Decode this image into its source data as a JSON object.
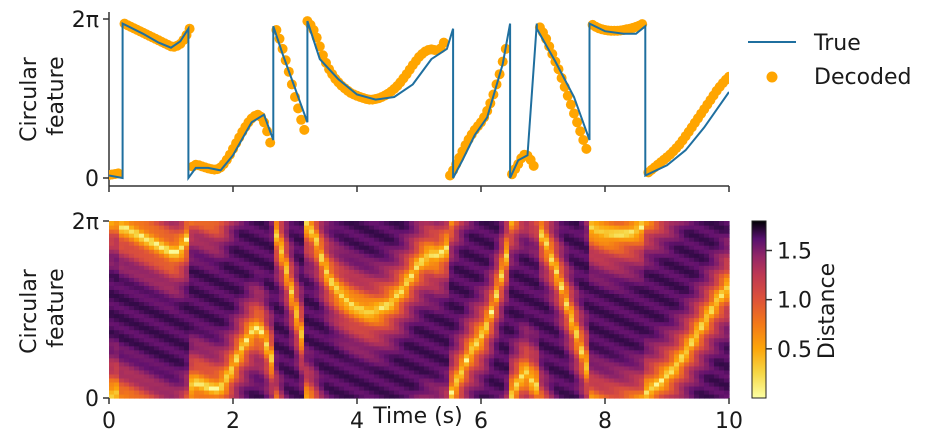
{
  "chart_data": [
    {
      "type": "line",
      "name": "Top panel: true vs decoded circular feature",
      "ylabel_lines": [
        "Circular",
        "feature"
      ],
      "yticks": [
        {
          "value": 0,
          "label": "0"
        },
        {
          "value": 6.2832,
          "label": "2π"
        }
      ],
      "xlim": [
        0,
        10
      ],
      "ylim": [
        0,
        6.2832
      ],
      "legend": {
        "placement": "right",
        "entries": [
          "True",
          "Decoded"
        ]
      },
      "colors": {
        "true": "#1f6f9f",
        "decoded": "#ffa500",
        "axis": "#333333"
      },
      "series": [
        {
          "name": "True",
          "x": [
            0,
            0.22,
            0.22,
            0.55,
            0.8,
            1.0,
            1.15,
            1.28,
            1.28,
            1.4,
            1.6,
            1.8,
            2.0,
            2.3,
            2.5,
            2.65,
            2.65,
            2.8,
            3.2,
            3.2,
            3.4,
            3.7,
            4.0,
            4.3,
            4.6,
            4.9,
            5.2,
            5.45,
            5.55,
            5.55,
            5.7,
            5.9,
            6.1,
            6.35,
            6.47,
            6.47,
            6.6,
            6.75,
            6.9,
            6.9,
            7.2,
            7.5,
            7.75,
            7.75,
            8.0,
            8.3,
            8.5,
            8.65,
            8.65,
            9.0,
            9.3,
            9.6,
            9.8,
            10.0
          ],
          "y": [
            0.1,
            0.0,
            6.1,
            5.7,
            5.35,
            5.15,
            5.4,
            5.9,
            0.0,
            0.4,
            0.4,
            0.3,
            0.9,
            2.2,
            2.5,
            1.5,
            6.0,
            4.9,
            2.2,
            6.2,
            4.7,
            3.9,
            3.3,
            3.1,
            3.2,
            3.7,
            4.7,
            5.1,
            5.9,
            0.0,
            0.7,
            1.7,
            2.4,
            4.5,
            6.1,
            0.0,
            0.7,
            0.9,
            6.1,
            5.9,
            4.6,
            3.2,
            1.5,
            6.1,
            5.8,
            5.7,
            5.7,
            6.0,
            0.1,
            0.5,
            1.1,
            2.0,
            2.7,
            3.4
          ]
        },
        {
          "name": "Decoded",
          "x": [
            0.0,
            0.05,
            0.1,
            0.15,
            0.25,
            0.3,
            0.35,
            0.4,
            0.45,
            0.5,
            0.55,
            0.6,
            0.65,
            0.7,
            0.75,
            0.8,
            0.85,
            0.9,
            0.95,
            1.0,
            1.05,
            1.1,
            1.15,
            1.2,
            1.25,
            1.3,
            1.35,
            1.4,
            1.45,
            1.5,
            1.55,
            1.6,
            1.65,
            1.7,
            1.75,
            1.8,
            1.85,
            1.9,
            1.95,
            2.0,
            2.05,
            2.1,
            2.15,
            2.2,
            2.25,
            2.3,
            2.35,
            2.4,
            2.45,
            2.5,
            2.55,
            2.6,
            2.7,
            2.75,
            2.8,
            2.85,
            2.9,
            2.95,
            3.0,
            3.05,
            3.1,
            3.15,
            3.2,
            3.25,
            3.3,
            3.35,
            3.4,
            3.45,
            3.5,
            3.55,
            3.6,
            3.65,
            3.7,
            3.75,
            3.8,
            3.85,
            3.9,
            3.95,
            4.0,
            4.05,
            4.1,
            4.15,
            4.2,
            4.25,
            4.3,
            4.35,
            4.4,
            4.45,
            4.5,
            4.55,
            4.6,
            4.65,
            4.7,
            4.75,
            4.8,
            4.85,
            4.9,
            4.95,
            5.0,
            5.05,
            5.1,
            5.15,
            5.2,
            5.25,
            5.3,
            5.35,
            5.4,
            5.5,
            5.55,
            5.6,
            5.65,
            5.7,
            5.75,
            5.8,
            5.85,
            5.9,
            5.95,
            6.0,
            6.05,
            6.1,
            6.15,
            6.2,
            6.25,
            6.3,
            6.35,
            6.4,
            6.5,
            6.55,
            6.6,
            6.65,
            6.7,
            6.75,
            6.8,
            6.85,
            6.95,
            7.0,
            7.05,
            7.1,
            7.15,
            7.2,
            7.25,
            7.3,
            7.35,
            7.4,
            7.45,
            7.5,
            7.55,
            7.6,
            7.65,
            7.7,
            7.8,
            7.85,
            7.9,
            7.95,
            8.0,
            8.05,
            8.1,
            8.15,
            8.2,
            8.25,
            8.3,
            8.35,
            8.4,
            8.45,
            8.5,
            8.55,
            8.6,
            8.7,
            8.75,
            8.8,
            8.85,
            8.9,
            8.95,
            9.0,
            9.05,
            9.1,
            9.15,
            9.2,
            9.25,
            9.3,
            9.35,
            9.4,
            9.45,
            9.5,
            9.55,
            9.6,
            9.65,
            9.7,
            9.75,
            9.8,
            9.85,
            9.9,
            9.95,
            10.0
          ],
          "y": [
            0.12,
            0.14,
            0.16,
            0.18,
            6.1,
            6.04,
            5.98,
            5.92,
            5.86,
            5.8,
            5.74,
            5.68,
            5.62,
            5.56,
            5.5,
            5.44,
            5.38,
            5.32,
            5.26,
            5.2,
            5.19,
            5.23,
            5.3,
            5.45,
            5.65,
            5.9,
            0.45,
            0.52,
            0.5,
            0.46,
            0.42,
            0.38,
            0.35,
            0.33,
            0.35,
            0.42,
            0.55,
            0.72,
            0.92,
            1.15,
            1.38,
            1.6,
            1.82,
            2.02,
            2.2,
            2.35,
            2.45,
            2.5,
            2.42,
            2.2,
            1.85,
            1.4,
            5.85,
            5.5,
            5.1,
            4.65,
            4.2,
            3.7,
            3.2,
            2.75,
            2.3,
            1.9,
            6.2,
            6.05,
            5.85,
            5.55,
            5.2,
            4.85,
            4.55,
            4.3,
            4.1,
            3.92,
            3.78,
            3.65,
            3.55,
            3.45,
            3.36,
            3.3,
            3.25,
            3.2,
            3.16,
            3.12,
            3.1,
            3.1,
            3.12,
            3.15,
            3.2,
            3.26,
            3.33,
            3.42,
            3.52,
            3.64,
            3.78,
            3.94,
            4.1,
            4.28,
            4.46,
            4.62,
            4.78,
            4.9,
            5.0,
            5.06,
            5.08,
            5.06,
            5.05,
            5.12,
            5.35,
            0.1,
            0.3,
            0.55,
            0.8,
            1.05,
            1.3,
            1.52,
            1.72,
            1.9,
            2.05,
            2.2,
            2.4,
            2.65,
            2.95,
            3.3,
            3.7,
            4.1,
            4.6,
            5.1,
            0.15,
            0.35,
            0.55,
            0.78,
            0.92,
            0.88,
            0.72,
            0.48,
            5.95,
            5.75,
            5.5,
            5.2,
            4.9,
            4.6,
            4.3,
            3.95,
            3.6,
            3.25,
            2.9,
            2.55,
            2.2,
            1.85,
            1.5,
            1.15,
            6.05,
            5.98,
            5.92,
            5.88,
            5.85,
            5.83,
            5.82,
            5.82,
            5.82,
            5.83,
            5.85,
            5.88,
            5.9,
            5.93,
            5.97,
            6.02,
            6.08,
            0.22,
            0.32,
            0.42,
            0.52,
            0.62,
            0.72,
            0.82,
            0.93,
            1.05,
            1.18,
            1.32,
            1.48,
            1.65,
            1.82,
            2.0,
            2.18,
            2.36,
            2.54,
            2.72,
            2.9,
            3.08,
            3.26,
            3.44,
            3.6,
            3.75,
            3.88,
            4.0
          ]
        }
      ]
    },
    {
      "type": "heatmap",
      "name": "Bottom panel: distance heatmap",
      "ylabel_lines": [
        "Circular",
        "feature"
      ],
      "xlabel": "Time (s)",
      "xticks": [
        {
          "value": 0,
          "label": "0"
        },
        {
          "value": 2,
          "label": "2"
        },
        {
          "value": 4,
          "label": "4"
        },
        {
          "value": 6,
          "label": "6"
        },
        {
          "value": 8,
          "label": "8"
        },
        {
          "value": 10,
          "label": "10"
        }
      ],
      "yticks": [
        {
          "value": 0,
          "label": "0"
        },
        {
          "value": 6.2832,
          "label": "2π"
        }
      ],
      "xlim": [
        0,
        10
      ],
      "ylim": [
        0,
        6.2832
      ],
      "colormap": "inferno_r",
      "colorbar": {
        "label": "Distance",
        "range": [
          0.0,
          1.8
        ],
        "ticks": [
          {
            "value": 0.5,
            "label": "0.5"
          },
          {
            "value": 1.0,
            "label": "1.0"
          },
          {
            "value": 1.5,
            "label": "1.5"
          }
        ]
      },
      "description_bright_band": "low distance follows the decoded circular feature trajectory"
    }
  ]
}
